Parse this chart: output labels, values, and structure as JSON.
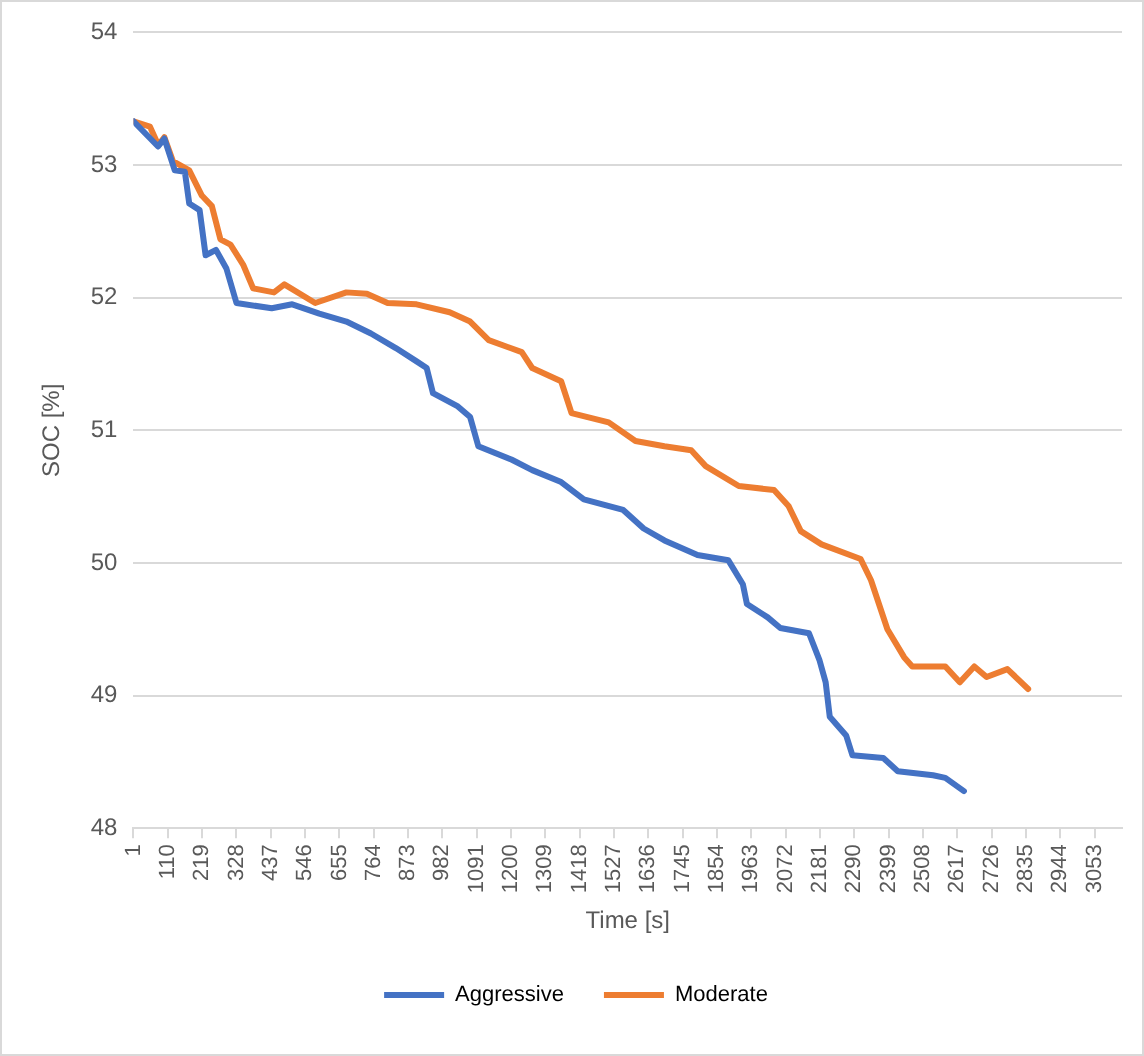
{
  "chart_data": {
    "type": "line",
    "xlabel": "Time [s]",
    "ylabel": "SOC [%]",
    "xlim": [
      1,
      3140
    ],
    "xticks": [
      1,
      110,
      219,
      328,
      437,
      546,
      655,
      764,
      873,
      982,
      1091,
      1200,
      1309,
      1418,
      1527,
      1636,
      1745,
      1854,
      1963,
      2072,
      2181,
      2290,
      2399,
      2508,
      2617,
      2726,
      2835,
      2944,
      3053
    ],
    "ylim": [
      48,
      54
    ],
    "yticks": [
      48,
      49,
      50,
      51,
      52,
      53,
      54
    ],
    "grid": "y",
    "legend": "bottom",
    "marker": "none",
    "line_style": "solid",
    "series": [
      {
        "name": "Aggressive",
        "color": "#4472c4",
        "x": [
          1,
          79,
          99,
          132,
          164,
          178,
          211,
          230,
          263,
          296,
          328,
          440,
          505,
          591,
          677,
          755,
          834,
          900,
          932,
          952,
          1031,
          1070,
          1096,
          1201,
          1267,
          1359,
          1431,
          1556,
          1621,
          1687,
          1792,
          1890,
          1936,
          1949,
          2015,
          2055,
          2146,
          2179,
          2199,
          2212,
          2264,
          2284,
          2382,
          2428,
          2540,
          2579,
          2638
        ],
        "values": [
          53.33,
          53.14,
          53.2,
          52.96,
          52.95,
          52.71,
          52.66,
          52.32,
          52.36,
          52.22,
          51.96,
          51.92,
          51.95,
          51.88,
          51.82,
          51.73,
          51.62,
          51.52,
          51.47,
          51.28,
          51.18,
          51.1,
          50.88,
          50.78,
          50.7,
          50.61,
          50.48,
          50.4,
          50.26,
          50.17,
          50.06,
          50.02,
          49.84,
          49.69,
          49.59,
          49.51,
          49.47,
          49.27,
          49.1,
          48.84,
          48.7,
          48.55,
          48.53,
          48.43,
          48.4,
          48.38,
          48.28
        ]
      },
      {
        "name": "Moderate",
        "color": "#ed7d31",
        "x": [
          1,
          53,
          80,
          99,
          126,
          178,
          218,
          250,
          277,
          309,
          349,
          381,
          447,
          480,
          578,
          677,
          742,
          808,
          900,
          1005,
          1070,
          1129,
          1234,
          1267,
          1359,
          1392,
          1510,
          1595,
          1687,
          1772,
          1818,
          1923,
          2035,
          2081,
          2120,
          2186,
          2310,
          2343,
          2395,
          2448,
          2474,
          2579,
          2625,
          2671,
          2710,
          2776,
          2842
        ],
        "values": [
          53.33,
          53.29,
          53.15,
          53.21,
          53.03,
          52.96,
          52.77,
          52.69,
          52.44,
          52.4,
          52.25,
          52.07,
          52.04,
          52.1,
          51.96,
          52.04,
          52.03,
          51.96,
          51.95,
          51.89,
          51.82,
          51.68,
          51.59,
          51.47,
          51.37,
          51.13,
          51.06,
          50.92,
          50.88,
          50.85,
          50.73,
          50.58,
          50.55,
          50.43,
          50.24,
          50.14,
          50.03,
          49.87,
          49.5,
          49.29,
          49.22,
          49.22,
          49.1,
          49.22,
          49.14,
          49.2,
          49.05
        ]
      }
    ]
  }
}
